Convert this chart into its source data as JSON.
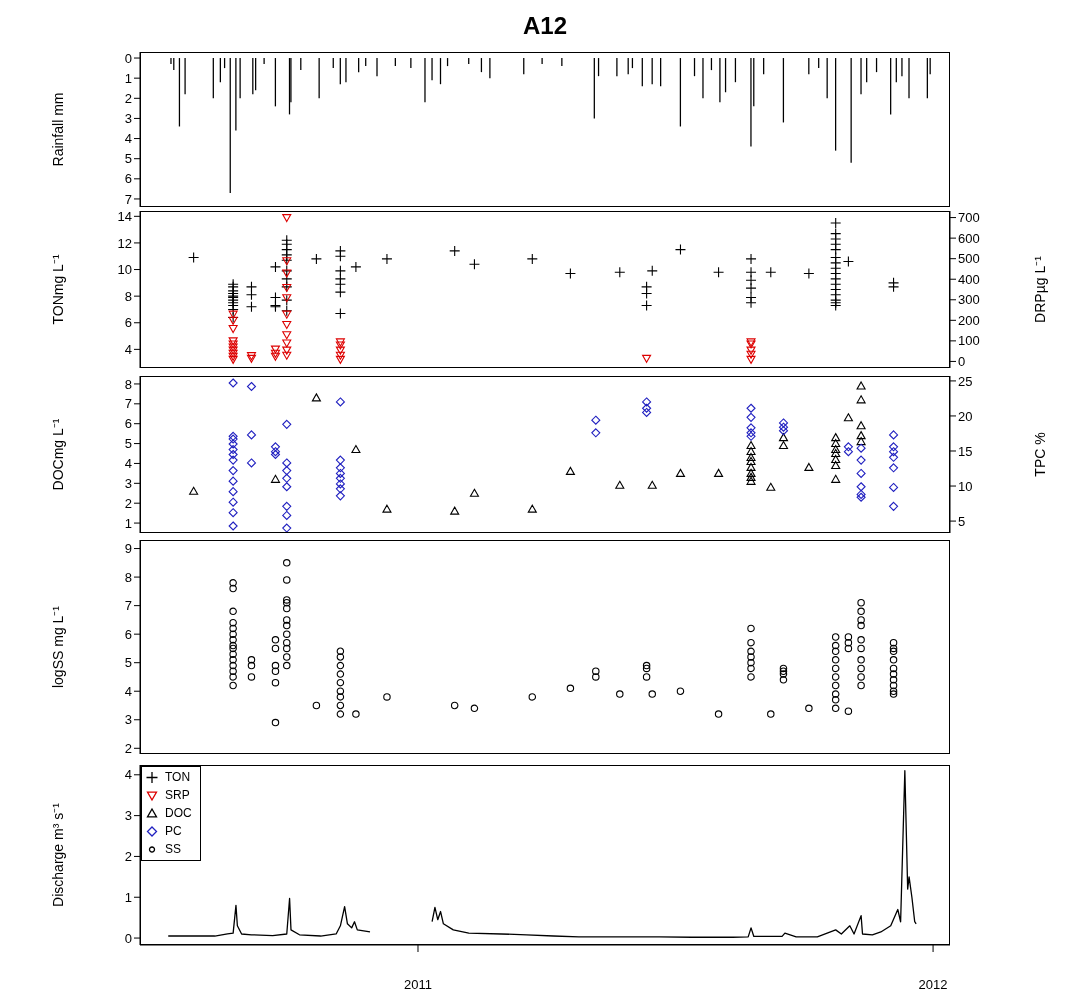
{
  "chart_data": [
    {
      "type": "bar",
      "title": "A12",
      "ylabel": "Rainfall mm",
      "color": "#000000",
      "tick_labels": "y",
      "xlim": [
        "2010-06-18",
        "2012-01-13"
      ],
      "ylim": [
        7.4,
        -0.3
      ],
      "yticks": [
        0,
        1,
        2,
        3,
        4,
        5,
        6,
        7
      ],
      "x": [
        "2010-07-10",
        "2010-07-12",
        "2010-07-16",
        "2010-07-20",
        "2010-08-09",
        "2010-08-14",
        "2010-08-17",
        "2010-08-21",
        "2010-08-25",
        "2010-08-28",
        "2010-09-06",
        "2010-09-08",
        "2010-09-14",
        "2010-09-22",
        "2010-10-02",
        "2010-10-03",
        "2010-10-10",
        "2010-10-23",
        "2010-11-02",
        "2010-11-07",
        "2010-11-11",
        "2010-11-20",
        "2010-11-25",
        "2010-12-03",
        "2010-12-16",
        "2010-12-27",
        "2011-01-06",
        "2011-01-11",
        "2011-01-17",
        "2011-01-22",
        "2011-02-06",
        "2011-02-15",
        "2011-02-21",
        "2011-03-17",
        "2011-03-30",
        "2011-04-13",
        "2011-05-06",
        "2011-05-09",
        "2011-05-22",
        "2011-05-30",
        "2011-06-02",
        "2011-06-09",
        "2011-06-16",
        "2011-06-22",
        "2011-07-06",
        "2011-07-16",
        "2011-07-22",
        "2011-07-28",
        "2011-08-03",
        "2011-08-07",
        "2011-08-14",
        "2011-08-25",
        "2011-08-27",
        "2011-09-03",
        "2011-09-17",
        "2011-10-05",
        "2011-10-12",
        "2011-10-18",
        "2011-10-24",
        "2011-11-04",
        "2011-11-11",
        "2011-11-15",
        "2011-11-22",
        "2011-12-02",
        "2011-12-06",
        "2011-12-10",
        "2011-12-15",
        "2011-12-28",
        "2011-12-30"
      ],
      "values": [
        0.3,
        0.6,
        3.4,
        1.8,
        2.0,
        1.2,
        0.5,
        6.7,
        3.6,
        2.0,
        1.8,
        1.6,
        0.3,
        2.4,
        2.8,
        2.2,
        0.6,
        2.0,
        0.5,
        1.3,
        1.2,
        0.7,
        0.4,
        0.9,
        0.4,
        0.5,
        2.2,
        1.1,
        1.3,
        0.4,
        0.3,
        0.7,
        1.0,
        0.8,
        0.3,
        0.4,
        3.0,
        0.9,
        0.9,
        0.8,
        0.5,
        1.4,
        1.3,
        1.4,
        3.4,
        0.9,
        2.0,
        0.6,
        2.2,
        1.7,
        1.2,
        4.4,
        2.4,
        0.8,
        3.2,
        0.8,
        0.5,
        2.0,
        4.6,
        5.2,
        1.8,
        1.2,
        0.7,
        2.8,
        1.2,
        0.9,
        2.0,
        2.0,
        0.8
      ]
    },
    {
      "type": "scatter",
      "legend": "bottom left",
      "ylabel": "TONmg L⁻¹",
      "y2label": "DRPµg L⁻¹",
      "tick_labels": "y",
      "xlim": [
        "2010-06-18",
        "2012-01-13"
      ],
      "ylim": [
        2.6,
        14.4
      ],
      "yticks": [
        4,
        6,
        8,
        10,
        12,
        14
      ],
      "y2lim": [
        -32,
        732
      ],
      "y2ticks": [
        0,
        100,
        200,
        300,
        400,
        500,
        600,
        700
      ],
      "series": [
        {
          "name": "TON",
          "color": "#000000",
          "marker": "cross",
          "x": [
            "2010-07-26",
            "2010-08-23",
            "2010-08-23",
            "2010-08-23",
            "2010-08-23",
            "2010-08-23",
            "2010-08-23",
            "2010-08-23",
            "2010-08-23",
            "2010-08-23",
            "2010-08-23",
            "2010-08-23",
            "2010-09-05",
            "2010-09-05",
            "2010-09-05",
            "2010-09-22",
            "2010-09-22",
            "2010-09-22",
            "2010-09-22",
            "2010-09-30",
            "2010-09-30",
            "2010-09-30",
            "2010-09-30",
            "2010-09-30",
            "2010-09-30",
            "2010-09-30",
            "2010-09-30",
            "2010-09-30",
            "2010-09-30",
            "2010-10-21",
            "2010-11-07",
            "2010-11-07",
            "2010-11-07",
            "2010-11-07",
            "2010-11-07",
            "2010-11-07",
            "2010-11-07",
            "2010-11-18",
            "2010-12-10",
            "2011-01-27",
            "2011-02-10",
            "2011-03-23",
            "2011-04-19",
            "2011-05-24",
            "2011-06-12",
            "2011-06-12",
            "2011-06-12",
            "2011-06-16",
            "2011-07-06",
            "2011-08-02",
            "2011-08-25",
            "2011-08-25",
            "2011-08-25",
            "2011-08-25",
            "2011-08-25",
            "2011-08-25",
            "2011-09-08",
            "2011-10-05",
            "2011-10-24",
            "2011-10-24",
            "2011-10-24",
            "2011-10-24",
            "2011-10-24",
            "2011-10-24",
            "2011-10-24",
            "2011-10-24",
            "2011-10-24",
            "2011-10-24",
            "2011-10-24",
            "2011-10-24",
            "2011-10-24",
            "2011-10-24",
            "2011-10-24",
            "2011-10-24",
            "2011-11-02",
            "2011-12-04",
            "2011-12-04"
          ],
          "values": [
            10.9,
            8.9,
            8.7,
            8.4,
            8.2,
            8.0,
            7.9,
            7.7,
            7.5,
            7.3,
            7.0,
            6.4,
            8.7,
            8.1,
            7.2,
            10.2,
            7.9,
            7.3,
            7.2,
            12.2,
            11.9,
            11.5,
            11.1,
            10.7,
            9.9,
            9.3,
            8.7,
            7.7,
            6.9,
            10.8,
            11.4,
            11.0,
            9.9,
            9.3,
            8.9,
            8.3,
            6.7,
            10.2,
            10.8,
            11.4,
            10.4,
            10.8,
            9.7,
            9.8,
            8.7,
            8.2,
            7.3,
            9.9,
            11.5,
            9.8,
            10.8,
            9.8,
            9.2,
            8.6,
            7.9,
            7.5,
            9.8,
            9.7,
            13.5,
            12.7,
            12.3,
            11.9,
            11.5,
            10.9,
            10.5,
            10.1,
            9.7,
            9.3,
            8.9,
            8.5,
            8.1,
            7.7,
            7.5,
            7.3,
            10.6,
            9.0,
            8.7
          ]
        },
        {
          "name": "SRP",
          "color": "#dd0000",
          "marker": "triangle_down",
          "axis": "y2",
          "x": [
            "2010-08-23",
            "2010-08-23",
            "2010-08-23",
            "2010-08-23",
            "2010-08-23",
            "2010-08-23",
            "2010-08-23",
            "2010-08-23",
            "2010-08-23",
            "2010-08-23",
            "2010-09-05",
            "2010-09-05",
            "2010-09-22",
            "2010-09-22",
            "2010-09-22",
            "2010-09-30",
            "2010-09-30",
            "2010-09-30",
            "2010-09-30",
            "2010-09-30",
            "2010-09-30",
            "2010-09-30",
            "2010-09-30",
            "2010-09-30",
            "2010-09-30",
            "2010-09-30",
            "2010-11-07",
            "2010-11-07",
            "2010-11-07",
            "2010-11-07",
            "2010-11-07",
            "2011-06-12",
            "2011-08-25",
            "2011-08-25",
            "2011-08-25",
            "2011-08-25",
            "2011-08-25"
          ],
          "values": [
            230,
            200,
            160,
            100,
            85,
            70,
            55,
            40,
            25,
            10,
            28,
            15,
            60,
            40,
            25,
            700,
            490,
            430,
            360,
            310,
            230,
            180,
            130,
            90,
            55,
            30,
            95,
            80,
            55,
            30,
            10,
            15,
            95,
            85,
            55,
            35,
            10
          ]
        }
      ]
    },
    {
      "type": "scatter",
      "legend": "bottom left",
      "ylabel": "DOCmg L⁻¹",
      "y2label": "TPC %",
      "tick_labels": "y",
      "xlim": [
        "2010-06-18",
        "2012-01-13"
      ],
      "ylim": [
        0.5,
        8.4
      ],
      "yticks": [
        1,
        2,
        3,
        4,
        5,
        6,
        7,
        8
      ],
      "y2lim": [
        3.3,
        25.7
      ],
      "y2ticks": [
        5,
        10,
        15,
        20,
        25
      ],
      "series": [
        {
          "name": "DOC",
          "color": "#000000",
          "marker": "triangle",
          "x": [
            "2010-07-26",
            "2010-09-22",
            "2010-10-21",
            "2010-11-18",
            "2010-12-10",
            "2011-01-27",
            "2011-02-10",
            "2011-03-23",
            "2011-04-19",
            "2011-05-24",
            "2011-06-16",
            "2011-07-06",
            "2011-08-02",
            "2011-08-25",
            "2011-08-25",
            "2011-08-25",
            "2011-08-25",
            "2011-08-25",
            "2011-08-25",
            "2011-08-25",
            "2011-08-25",
            "2011-09-08",
            "2011-09-17",
            "2011-09-17",
            "2011-10-05",
            "2011-10-24",
            "2011-10-24",
            "2011-10-24",
            "2011-10-24",
            "2011-10-24",
            "2011-10-24",
            "2011-10-24",
            "2011-11-02",
            "2011-11-11",
            "2011-11-11",
            "2011-11-11",
            "2011-11-11",
            "2011-11-11"
          ],
          "values": [
            2.6,
            3.2,
            7.3,
            4.7,
            1.7,
            1.6,
            2.5,
            1.7,
            3.6,
            2.9,
            2.9,
            3.5,
            3.5,
            4.9,
            4.6,
            4.3,
            4.1,
            3.8,
            3.5,
            3.3,
            3.1,
            2.8,
            5.3,
            4.9,
            3.8,
            5.3,
            5.0,
            4.7,
            4.5,
            4.2,
            3.9,
            3.2,
            6.3,
            7.9,
            7.2,
            5.9,
            5.4,
            5.1
          ]
        },
        {
          "name": "PC",
          "color": "#2020c0",
          "marker": "diamond",
          "axis": "y2",
          "x": [
            "2010-08-23",
            "2010-08-23",
            "2010-08-23",
            "2010-08-23",
            "2010-08-23",
            "2010-08-23",
            "2010-08-23",
            "2010-08-23",
            "2010-08-23",
            "2010-08-23",
            "2010-08-23",
            "2010-08-23",
            "2010-08-23",
            "2010-09-05",
            "2010-09-05",
            "2010-09-05",
            "2010-09-22",
            "2010-09-22",
            "2010-09-22",
            "2010-09-30",
            "2010-09-30",
            "2010-09-30",
            "2010-09-30",
            "2010-09-30",
            "2010-09-30",
            "2010-09-30",
            "2010-09-30",
            "2010-11-07",
            "2010-11-07",
            "2010-11-07",
            "2010-11-07",
            "2010-11-07",
            "2010-11-07",
            "2010-11-07",
            "2010-11-07",
            "2011-05-07",
            "2011-05-07",
            "2011-06-12",
            "2011-06-12",
            "2011-06-12",
            "2011-08-25",
            "2011-08-25",
            "2011-08-25",
            "2011-08-25",
            "2011-08-25",
            "2011-09-17",
            "2011-09-17",
            "2011-09-17",
            "2011-11-02",
            "2011-11-02",
            "2011-11-11",
            "2011-11-11",
            "2011-11-11",
            "2011-11-11",
            "2011-11-11",
            "2011-11-11",
            "2011-12-04",
            "2011-12-04",
            "2011-12-04",
            "2011-12-04",
            "2011-12-04",
            "2011-12-04",
            "2011-12-04"
          ],
          "values": [
            24.7,
            17.1,
            16.7,
            16.0,
            15.2,
            14.5,
            13.7,
            12.2,
            10.7,
            9.2,
            7.7,
            6.2,
            4.3,
            24.2,
            17.3,
            13.3,
            15.6,
            14.9,
            14.5,
            18.8,
            13.3,
            12.2,
            11.1,
            9.9,
            7.1,
            5.8,
            4.0,
            22.0,
            13.7,
            12.6,
            11.8,
            11.1,
            10.3,
            9.6,
            8.6,
            19.4,
            17.6,
            22.0,
            21.1,
            20.5,
            21.1,
            19.8,
            18.3,
            17.6,
            17.1,
            19.0,
            18.4,
            17.9,
            15.6,
            14.9,
            15.4,
            13.7,
            11.8,
            9.9,
            8.8,
            8.4,
            17.3,
            15.6,
            14.9,
            14.1,
            12.6,
            9.8,
            7.1
          ]
        }
      ]
    },
    {
      "type": "scatter",
      "legend": "bottom left",
      "ylabel": "logSS mg L⁻¹",
      "tick_labels": "y",
      "xlim": [
        "2010-06-18",
        "2012-01-13"
      ],
      "ylim": [
        1.8,
        9.3
      ],
      "yticks": [
        2,
        3,
        4,
        5,
        6,
        7,
        8,
        9
      ],
      "series": [
        {
          "name": "SS",
          "color": "#000000",
          "marker": "circle",
          "x": [
            "2010-08-23",
            "2010-08-23",
            "2010-08-23",
            "2010-08-23",
            "2010-08-23",
            "2010-08-23",
            "2010-08-23",
            "2010-08-23",
            "2010-08-23",
            "2010-08-23",
            "2010-08-23",
            "2010-08-23",
            "2010-08-23",
            "2010-08-23",
            "2010-08-23",
            "2010-09-05",
            "2010-09-05",
            "2010-09-05",
            "2010-09-22",
            "2010-09-22",
            "2010-09-22",
            "2010-09-22",
            "2010-09-22",
            "2010-09-22",
            "2010-09-30",
            "2010-09-30",
            "2010-09-30",
            "2010-09-30",
            "2010-09-30",
            "2010-09-30",
            "2010-09-30",
            "2010-09-30",
            "2010-09-30",
            "2010-09-30",
            "2010-09-30",
            "2010-09-30",
            "2010-10-21",
            "2010-11-07",
            "2010-11-07",
            "2010-11-07",
            "2010-11-07",
            "2010-11-07",
            "2010-11-07",
            "2010-11-07",
            "2010-11-07",
            "2010-11-07",
            "2010-11-18",
            "2010-12-10",
            "2011-01-27",
            "2011-02-10",
            "2011-03-23",
            "2011-04-19",
            "2011-05-07",
            "2011-05-07",
            "2011-05-24",
            "2011-06-12",
            "2011-06-12",
            "2011-06-12",
            "2011-06-16",
            "2011-07-06",
            "2011-08-02",
            "2011-08-25",
            "2011-08-25",
            "2011-08-25",
            "2011-08-25",
            "2011-08-25",
            "2011-08-25",
            "2011-08-25",
            "2011-09-08",
            "2011-09-17",
            "2011-09-17",
            "2011-09-17",
            "2011-09-17",
            "2011-10-05",
            "2011-10-24",
            "2011-10-24",
            "2011-10-24",
            "2011-10-24",
            "2011-10-24",
            "2011-10-24",
            "2011-10-24",
            "2011-10-24",
            "2011-10-24",
            "2011-10-24",
            "2011-11-02",
            "2011-11-02",
            "2011-11-02",
            "2011-11-02",
            "2011-11-11",
            "2011-11-11",
            "2011-11-11",
            "2011-11-11",
            "2011-11-11",
            "2011-11-11",
            "2011-11-11",
            "2011-11-11",
            "2011-11-11",
            "2011-11-11",
            "2011-12-04",
            "2011-12-04",
            "2011-12-04",
            "2011-12-04",
            "2011-12-04",
            "2011-12-04",
            "2011-12-04",
            "2011-12-04",
            "2011-12-04",
            "2011-12-04"
          ],
          "values": [
            7.8,
            7.6,
            6.8,
            6.4,
            6.2,
            6.0,
            5.8,
            5.6,
            5.5,
            5.3,
            5.1,
            4.9,
            4.7,
            4.5,
            4.2,
            5.1,
            4.9,
            4.5,
            5.8,
            5.5,
            4.9,
            4.7,
            4.3,
            2.9,
            8.5,
            7.9,
            7.2,
            7.1,
            6.9,
            6.5,
            6.3,
            6.0,
            5.7,
            5.5,
            5.2,
            4.9,
            3.5,
            5.4,
            5.2,
            4.9,
            4.6,
            4.3,
            4.0,
            3.8,
            3.5,
            3.2,
            3.2,
            3.8,
            3.5,
            3.4,
            3.8,
            4.1,
            4.7,
            4.5,
            3.9,
            4.9,
            4.8,
            4.5,
            3.9,
            4.0,
            3.2,
            6.2,
            5.7,
            5.4,
            5.2,
            5.0,
            4.8,
            4.5,
            3.2,
            4.8,
            4.7,
            4.6,
            4.4,
            3.4,
            5.9,
            5.6,
            5.4,
            5.1,
            4.8,
            4.5,
            4.2,
            3.9,
            3.7,
            3.4,
            5.9,
            5.7,
            5.5,
            3.3,
            7.1,
            6.8,
            6.5,
            6.3,
            5.8,
            5.5,
            5.1,
            4.8,
            4.5,
            4.2,
            5.7,
            5.5,
            5.4,
            5.1,
            4.8,
            4.6,
            4.4,
            4.2,
            4.0,
            3.9
          ]
        }
      ]
    },
    {
      "type": "line",
      "ylabel": "Discharge m³ s⁻¹",
      "color": "#000000",
      "line_style": "solid",
      "xlim": [
        "2010-06-18",
        "2012-01-13"
      ],
      "xticks": [
        "2011",
        "2012"
      ],
      "ylim": [
        -0.17,
        4.24
      ],
      "yticks": [
        0,
        1,
        2,
        3,
        4
      ],
      "x": [
        "2010-07-08",
        "2010-08-10",
        "2010-08-19",
        "2010-08-23",
        "2010-08-25",
        "2010-08-26",
        "2010-08-29",
        "2010-09-05",
        "2010-09-20",
        "2010-09-30",
        "2010-10-02",
        "2010-10-03",
        "2010-10-09",
        "2010-10-24",
        "2010-11-04",
        "2010-11-07",
        "2010-11-10",
        "2010-11-12",
        "2010-11-15",
        "2010-11-17",
        "2010-11-19",
        "2010-11-28",
        "2010-12-20",
        "2011-01-11",
        "2011-01-13",
        "2011-01-15",
        "2011-01-17",
        "2011-01-19",
        "2011-01-26",
        "2011-02-06",
        "2011-03-01",
        "2011-03-19",
        "2011-04-07",
        "2011-04-25",
        "2011-05-14",
        "2011-06-11",
        "2011-06-21",
        "2011-07-14",
        "2011-07-21",
        "2011-08-12",
        "2011-08-23",
        "2011-08-25",
        "2011-08-27",
        "2011-09-16",
        "2011-09-18",
        "2011-09-26",
        "2011-10-11",
        "2011-10-24",
        "2011-10-28",
        "2011-11-03",
        "2011-11-06",
        "2011-11-11",
        "2011-11-12",
        "2011-11-19",
        "2011-11-25",
        "2011-12-02",
        "2011-12-07",
        "2011-12-09",
        "2011-12-12",
        "2011-12-14",
        "2011-12-15",
        "2011-12-17",
        "2011-12-19",
        "2011-12-20"
      ],
      "values": [
        0.05,
        0.05,
        0.1,
        0.12,
        0.8,
        0.3,
        0.1,
        0.08,
        0.06,
        0.1,
        0.97,
        0.2,
        0.08,
        0.05,
        0.1,
        0.3,
        0.77,
        0.35,
        0.25,
        0.4,
        0.2,
        0.15,
        null,
        0.4,
        0.75,
        0.45,
        0.65,
        0.35,
        0.2,
        0.12,
        0.1,
        0.08,
        0.05,
        0.03,
        0.03,
        0.03,
        0.03,
        0.02,
        0.02,
        0.02,
        0.03,
        0.25,
        0.04,
        0.04,
        0.12,
        0.03,
        0.03,
        0.2,
        0.1,
        0.3,
        0.1,
        0.55,
        0.1,
        0.08,
        0.15,
        0.3,
        0.7,
        0.4,
        4.1,
        1.2,
        1.5,
        1.0,
        0.4,
        0.35
      ]
    }
  ]
}
